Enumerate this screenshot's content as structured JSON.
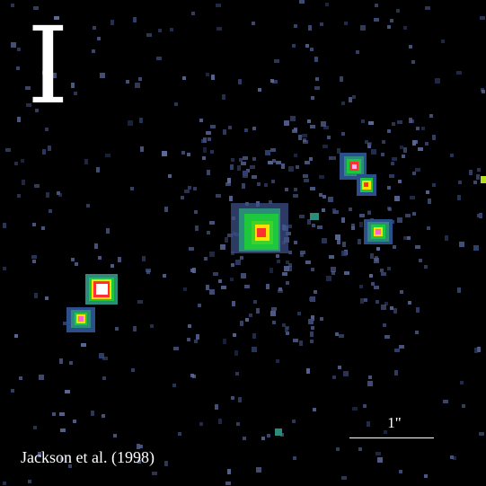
{
  "image": {
    "band_label": "I",
    "credit": "Jackson et al. (1998)",
    "scale_bar_label": "1\"",
    "background_color": "#000000",
    "noise_color": "#4a5a8a",
    "colormap": [
      "#2a3f8f",
      "#2b8c7a",
      "#1ec83c",
      "#ffe000",
      "#ff3030",
      "#ffffff"
    ]
  }
}
